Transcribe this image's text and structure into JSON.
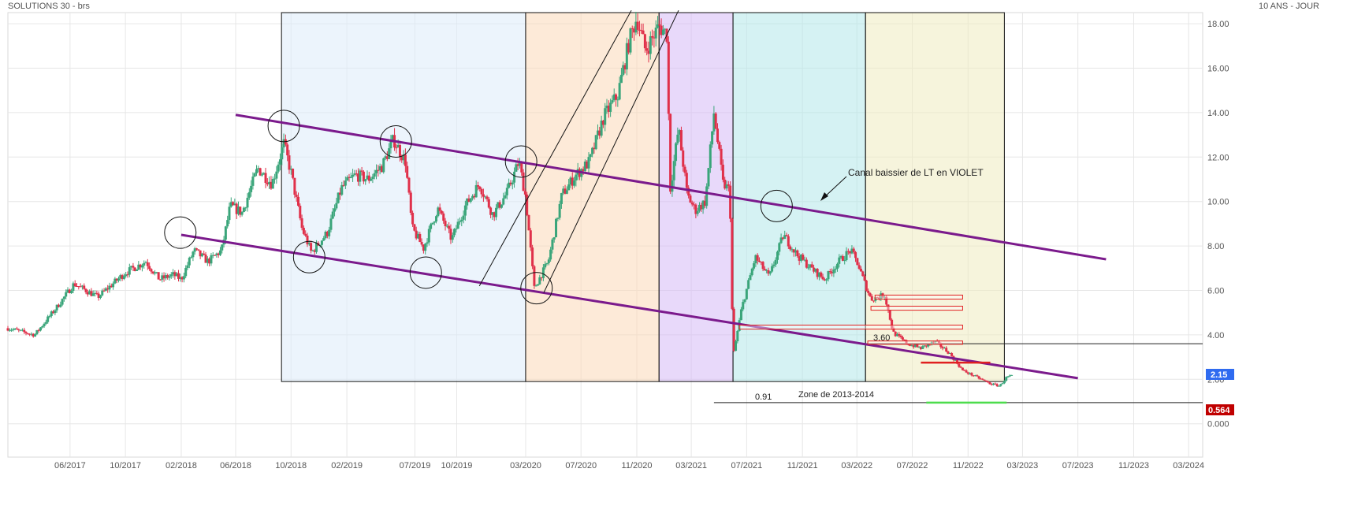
{
  "header": {
    "title": "SOLUTIONS 30 - brs",
    "period": "10 ANS - JOUR"
  },
  "chart_data": {
    "type": "candlestick",
    "title": "SOLUTIONS 30 - brs",
    "scale": "linear",
    "grid": true,
    "ylim": [
      -1.5,
      18.5
    ],
    "xlim": [
      "2017-01-15",
      "2024-04-01"
    ],
    "y_ticks": [
      "18.00",
      "16.00",
      "14.00",
      "12.00",
      "10.00",
      "8.00",
      "6.00",
      "4.00",
      "2.00",
      "0.000"
    ],
    "y_tick_values": [
      18,
      16,
      14,
      12,
      10,
      8,
      6,
      4,
      2,
      0
    ],
    "x_ticks": [
      "06/2017",
      "10/2017",
      "02/2018",
      "06/2018",
      "10/2018",
      "02/2019",
      "07/2019",
      "10/2019",
      "03/2020",
      "07/2020",
      "11/2020",
      "03/2021",
      "07/2021",
      "11/2021",
      "03/2022",
      "07/2022",
      "11/2022",
      "03/2023",
      "07/2023",
      "11/2023",
      "03/2024"
    ],
    "x_tick_dates": [
      "2017-06-01",
      "2017-10-01",
      "2018-02-01",
      "2018-06-01",
      "2018-10-01",
      "2019-02-01",
      "2019-07-01",
      "2019-10-01",
      "2020-03-01",
      "2020-07-01",
      "2020-11-01",
      "2021-03-01",
      "2021-07-01",
      "2021-11-01",
      "2022-03-01",
      "2022-07-01",
      "2022-11-01",
      "2023-03-01",
      "2023-07-01",
      "2023-11-01",
      "2024-03-01"
    ],
    "price_path": [
      [
        "2017-01-15",
        4.3
      ],
      [
        "2017-03-15",
        4.0
      ],
      [
        "2017-05-01",
        5.2
      ],
      [
        "2017-06-10",
        6.3
      ],
      [
        "2017-08-01",
        5.7
      ],
      [
        "2017-10-01",
        6.8
      ],
      [
        "2017-11-15",
        7.3
      ],
      [
        "2017-12-15",
        6.5
      ],
      [
        "2018-01-15",
        6.7
      ],
      [
        "2018-02-01",
        6.5
      ],
      [
        "2018-03-01",
        7.8
      ],
      [
        "2018-04-01",
        7.3
      ],
      [
        "2018-05-01",
        7.8
      ],
      [
        "2018-05-20",
        9.8
      ],
      [
        "2018-06-15",
        9.5
      ],
      [
        "2018-07-20",
        11.5
      ],
      [
        "2018-08-20",
        10.8
      ],
      [
        "2018-09-15",
        12.6
      ],
      [
        "2018-10-01",
        11.3
      ],
      [
        "2018-10-25",
        8.8
      ],
      [
        "2018-11-15",
        7.7
      ],
      [
        "2018-12-20",
        8.6
      ],
      [
        "2019-01-20",
        10.6
      ],
      [
        "2019-02-20",
        11.2
      ],
      [
        "2019-03-20",
        11.0
      ],
      [
        "2019-04-20",
        11.6
      ],
      [
        "2019-05-15",
        12.8
      ],
      [
        "2019-06-10",
        11.8
      ],
      [
        "2019-06-25",
        8.8
      ],
      [
        "2019-07-20",
        7.9
      ],
      [
        "2019-08-20",
        9.7
      ],
      [
        "2019-09-20",
        8.3
      ],
      [
        "2019-10-20",
        9.8
      ],
      [
        "2019-11-20",
        10.8
      ],
      [
        "2019-12-20",
        9.4
      ],
      [
        "2020-01-20",
        10.4
      ],
      [
        "2020-02-15",
        11.8
      ],
      [
        "2020-03-01",
        10.2
      ],
      [
        "2020-03-20",
        6.1
      ],
      [
        "2020-04-20",
        7.3
      ],
      [
        "2020-05-20",
        10.3
      ],
      [
        "2020-06-20",
        11.2
      ],
      [
        "2020-07-20",
        11.8
      ],
      [
        "2020-08-20",
        13.8
      ],
      [
        "2020-09-20",
        14.8
      ],
      [
        "2020-10-15",
        17.2
      ],
      [
        "2020-11-01",
        18.3
      ],
      [
        "2020-11-20",
        16.8
      ],
      [
        "2020-12-20",
        17.9
      ],
      [
        "2021-01-08",
        17.5
      ],
      [
        "2021-01-12",
        10.3
      ],
      [
        "2021-02-01",
        13.3
      ],
      [
        "2021-02-20",
        10.3
      ],
      [
        "2021-03-10",
        9.6
      ],
      [
        "2021-04-01",
        10.0
      ],
      [
        "2021-04-20",
        14.0
      ],
      [
        "2021-05-10",
        10.8
      ],
      [
        "2021-05-25",
        10.5
      ],
      [
        "2021-06-01",
        3.0
      ],
      [
        "2021-06-20",
        5.2
      ],
      [
        "2021-07-20",
        7.5
      ],
      [
        "2021-08-20",
        6.6
      ],
      [
        "2021-09-20",
        8.5
      ],
      [
        "2021-10-20",
        7.6
      ],
      [
        "2021-11-20",
        7.0
      ],
      [
        "2021-12-20",
        6.5
      ],
      [
        "2022-01-20",
        7.3
      ],
      [
        "2022-02-15",
        7.8
      ],
      [
        "2022-03-01",
        7.3
      ],
      [
        "2022-03-15",
        6.5
      ],
      [
        "2022-04-01",
        5.6
      ],
      [
        "2022-05-01",
        5.8
      ],
      [
        "2022-05-20",
        4.1
      ],
      [
        "2022-06-20",
        3.6
      ],
      [
        "2022-07-20",
        3.4
      ],
      [
        "2022-08-20",
        3.7
      ],
      [
        "2022-09-20",
        3.2
      ],
      [
        "2022-10-20",
        2.4
      ],
      [
        "2022-11-20",
        2.1
      ],
      [
        "2022-12-20",
        1.8
      ],
      [
        "2023-01-10",
        1.7
      ],
      [
        "2023-01-25",
        2.1
      ],
      [
        "2023-02-05",
        2.15
      ]
    ],
    "last_price_label": "2.15",
    "low_level_label": "0.564",
    "annotations": {
      "channel_label": "Canal baissier de LT en VIOLET",
      "level_360_label": "3.60",
      "level_091_label": "0.91",
      "zone_label": "Zone de 2013-2014"
    },
    "channel_upper": [
      [
        "2018-06-01",
        13.9
      ],
      [
        "2023-09-01",
        7.4
      ]
    ],
    "channel_lower": [
      [
        "2018-02-01",
        8.5
      ],
      [
        "2023-07-01",
        2.05
      ]
    ],
    "uptrend_lines": [
      [
        [
          "2019-11-20",
          6.2
        ],
        [
          "2020-10-20",
          18.6
        ]
      ],
      [
        [
          "2020-04-10",
          5.9
        ],
        [
          "2021-02-01",
          18.6
        ]
      ]
    ],
    "shaded_zones": [
      {
        "from": "2018-09-10",
        "to": "2020-03-01",
        "color": "#dcebfa"
      },
      {
        "from": "2020-03-01",
        "to": "2020-12-20",
        "color": "#fbd9b8"
      },
      {
        "from": "2020-12-20",
        "to": "2021-06-01",
        "color": "#d6baf5"
      },
      {
        "from": "2021-06-01",
        "to": "2022-03-20",
        "color": "#b3e7ea"
      },
      {
        "from": "2022-03-20",
        "to": "2023-01-20",
        "color": "#eeebc0"
      }
    ],
    "zones_y_range": [
      1.9,
      18.5
    ],
    "circles": [
      [
        "2018-01-30",
        8.6
      ],
      [
        "2018-09-15",
        13.4
      ],
      [
        "2018-11-10",
        7.5
      ],
      [
        "2019-05-20",
        12.7
      ],
      [
        "2019-07-25",
        6.8
      ],
      [
        "2020-02-20",
        11.8
      ],
      [
        "2020-03-25",
        6.1
      ],
      [
        "2021-09-05",
        9.8
      ]
    ],
    "resistance_boxes": [
      {
        "from": "2022-04-10",
        "to": "2022-10-20",
        "level": 5.7,
        "height": 0.18
      },
      {
        "from": "2022-04-01",
        "to": "2022-10-20",
        "level": 5.2,
        "height": 0.18
      },
      {
        "from": "2021-06-15",
        "to": "2022-10-20",
        "level": 4.35,
        "height": 0.18
      },
      {
        "from": "2022-03-25",
        "to": "2022-10-20",
        "level": 3.65,
        "height": 0.15
      }
    ],
    "support_lines": [
      {
        "from": "2022-07-20",
        "to": "2022-12-20",
        "level": 2.75,
        "color": "#e02020"
      },
      {
        "from": "2022-08-01",
        "to": "2023-01-25",
        "level": 0.95,
        "color": "#4ddc4d"
      }
    ],
    "horizontal_levels": [
      {
        "from": "2022-03-20",
        "to": "2024-04-01",
        "level": 3.6
      },
      {
        "from": "2021-04-20",
        "to": "2024-04-01",
        "level": 0.95
      }
    ]
  }
}
